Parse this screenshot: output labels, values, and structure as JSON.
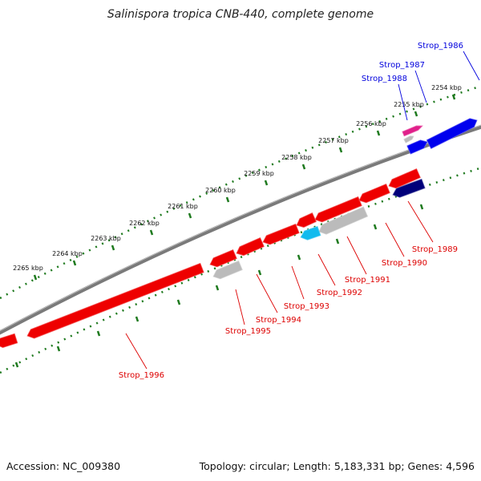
{
  "title": "Salinispora tropica CNB-440, complete genome",
  "footer": {
    "accession": "Accession: NC_009380",
    "summary": "Topology: circular; Length: 5,183,331 bp; Genes: 4,596"
  },
  "colors": {
    "backbone": "#7a7a7a",
    "tick_track": "#1f7a1f",
    "forward_label": "#0000dd",
    "reverse_label": "#dd0000",
    "leader": "#777777"
  },
  "ticks": [
    {
      "label": "2254 kbp"
    },
    {
      "label": "2255 kbp"
    },
    {
      "label": "2256 kbp"
    },
    {
      "label": "2257 kbp"
    },
    {
      "label": "2258 kbp"
    },
    {
      "label": "2259 kbp"
    },
    {
      "label": "2260 kbp"
    },
    {
      "label": "2261 kbp"
    },
    {
      "label": "2262 kbp"
    },
    {
      "label": "2263 kbp"
    },
    {
      "label": "2264 kbp"
    },
    {
      "label": "2265 kbp"
    }
  ],
  "genes": [
    {
      "name": "Strop_1986",
      "strand": "forward",
      "color": "#0000ee"
    },
    {
      "name": "Strop_1987",
      "strand": "forward",
      "color": "#0000ee"
    },
    {
      "name": "Strop_1988",
      "strand": "forward",
      "color": "#e0208a"
    },
    {
      "name": "Strop_1989",
      "strand": "reverse",
      "color": "#00007a"
    },
    {
      "name": "Strop_1990",
      "strand": "reverse",
      "color": "#ee0000"
    },
    {
      "name": "Strop_1991",
      "strand": "reverse",
      "color": "#bbbbbb"
    },
    {
      "name": "Strop_1992",
      "strand": "reverse",
      "color": "#11bbee"
    },
    {
      "name": "Strop_1993",
      "strand": "reverse",
      "color": "#ee0000"
    },
    {
      "name": "Strop_1994",
      "strand": "reverse",
      "color": "#ee0000"
    },
    {
      "name": "Strop_1995",
      "strand": "reverse",
      "color": "#bbbbbb"
    },
    {
      "name": "Strop_1996",
      "strand": "reverse",
      "color": "#ee0000"
    }
  ]
}
